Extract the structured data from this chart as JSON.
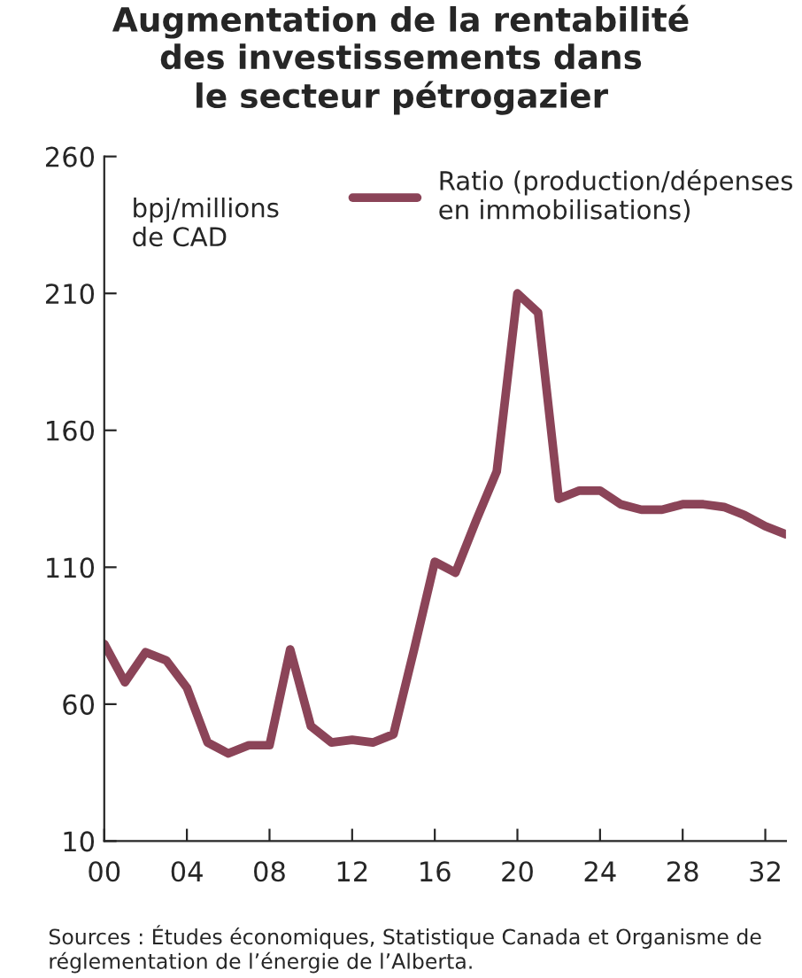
{
  "chart_data": {
    "type": "line",
    "title": "Augmentation de la rentabilité\ndes investissements dans\nle secteur pétrogazier",
    "ylabel": "bpj/millions\nde CAD",
    "x": [
      0,
      1,
      2,
      3,
      4,
      5,
      6,
      7,
      8,
      9,
      10,
      11,
      12,
      13,
      14,
      15,
      16,
      17,
      18,
      19,
      20,
      21,
      22,
      23,
      24,
      25,
      26,
      27,
      28,
      29,
      30,
      31,
      32,
      33
    ],
    "series": [
      {
        "name": "Ratio (production/dépenses\nen immobilisations)",
        "color": "#8b4458",
        "values": [
          82,
          68,
          79,
          76,
          66,
          46,
          42,
          45,
          45,
          80,
          52,
          46,
          47,
          46,
          49,
          80,
          112,
          108,
          127,
          145,
          210,
          203,
          135,
          138,
          138,
          133,
          131,
          131,
          133,
          133,
          132,
          129,
          125,
          122
        ]
      }
    ],
    "xlim": [
      0,
      33
    ],
    "xticks": [
      {
        "value": 0,
        "label": "00"
      },
      {
        "value": 4,
        "label": "04"
      },
      {
        "value": 8,
        "label": "08"
      },
      {
        "value": 12,
        "label": "12"
      },
      {
        "value": 16,
        "label": "16"
      },
      {
        "value": 20,
        "label": "20"
      },
      {
        "value": 24,
        "label": "24"
      },
      {
        "value": 28,
        "label": "28"
      },
      {
        "value": 32,
        "label": "32"
      }
    ],
    "ylim": [
      10,
      260
    ],
    "yticks": [
      10,
      60,
      110,
      160,
      210,
      260
    ],
    "grid": false,
    "legend": "top right",
    "marker": "none",
    "line_style": "solid",
    "annotations": [
      "Sources : Études économiques, Statistique Canada et Organisme de réglementation de l’énergie de l’Alberta."
    ]
  }
}
